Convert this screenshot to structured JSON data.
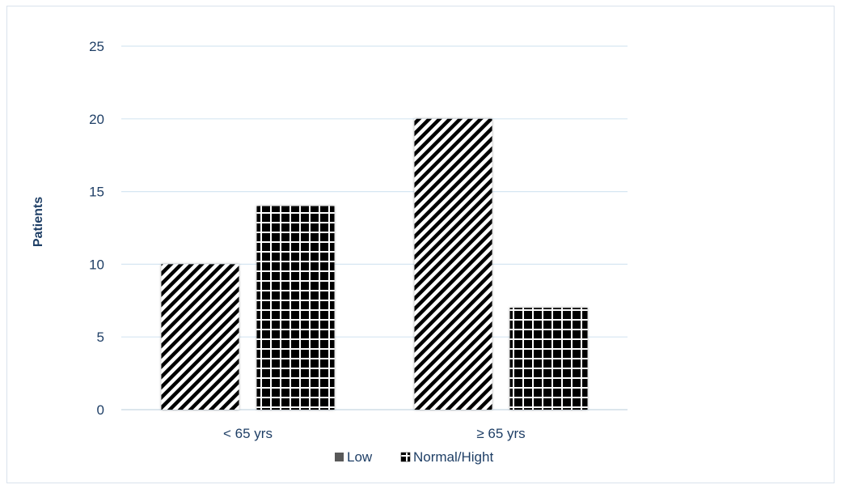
{
  "chart_data": {
    "type": "bar",
    "title": "",
    "xlabel": "",
    "ylabel": "Patients",
    "categories": [
      "< 65 yrs",
      "≥ 65 yrs"
    ],
    "series": [
      {
        "name": "Low",
        "values": [
          10,
          20
        ],
        "pattern": "diagonal-stripes"
      },
      {
        "name": "Normal/Hight",
        "values": [
          14,
          7
        ],
        "pattern": "grid"
      }
    ],
    "ylim": [
      0,
      25
    ],
    "yticks": [
      0,
      5,
      10,
      15,
      20,
      25
    ],
    "grid": true,
    "legend": "bottom",
    "colors": {
      "text": "#1f3f66",
      "grid": "#d6e6f2",
      "axis": "#c8d6e2",
      "bar_dark": "#000000",
      "bar_light": "#ffffff"
    }
  }
}
